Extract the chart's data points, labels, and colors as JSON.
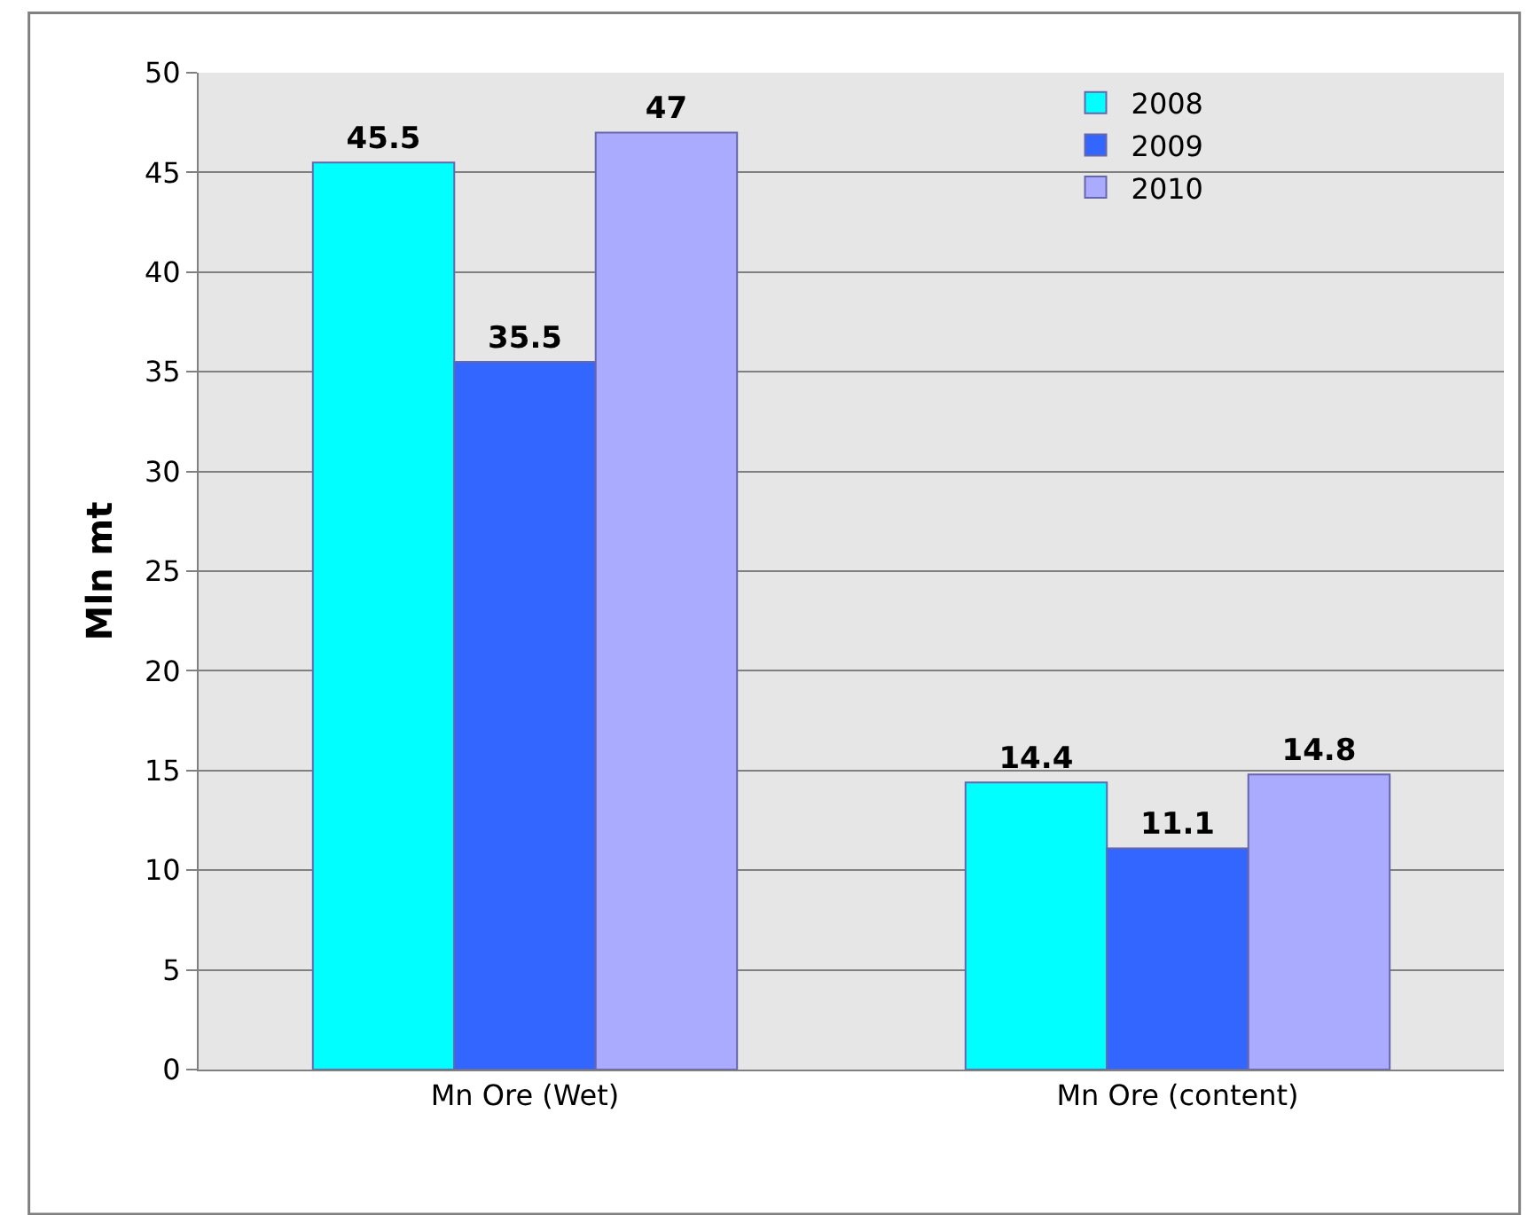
{
  "chart_data": {
    "type": "bar",
    "ylabel": "Mln mt",
    "categories": [
      "Mn Ore (Wet)",
      "Mn Ore (content)"
    ],
    "series": [
      {
        "name": "2008",
        "color": "#00ffff",
        "values": [
          45.5,
          14.4
        ]
      },
      {
        "name": "2009",
        "color": "#3366ff",
        "values": [
          35.5,
          11.1
        ]
      },
      {
        "name": "2010",
        "color": "#aaaaff",
        "values": [
          47,
          14.8
        ]
      }
    ],
    "ylim": [
      0,
      50
    ],
    "yticks": [
      0,
      5,
      10,
      15,
      20,
      25,
      30,
      35,
      40,
      45,
      50
    ],
    "grid": "y",
    "legend": "top right",
    "data_labels": true
  }
}
